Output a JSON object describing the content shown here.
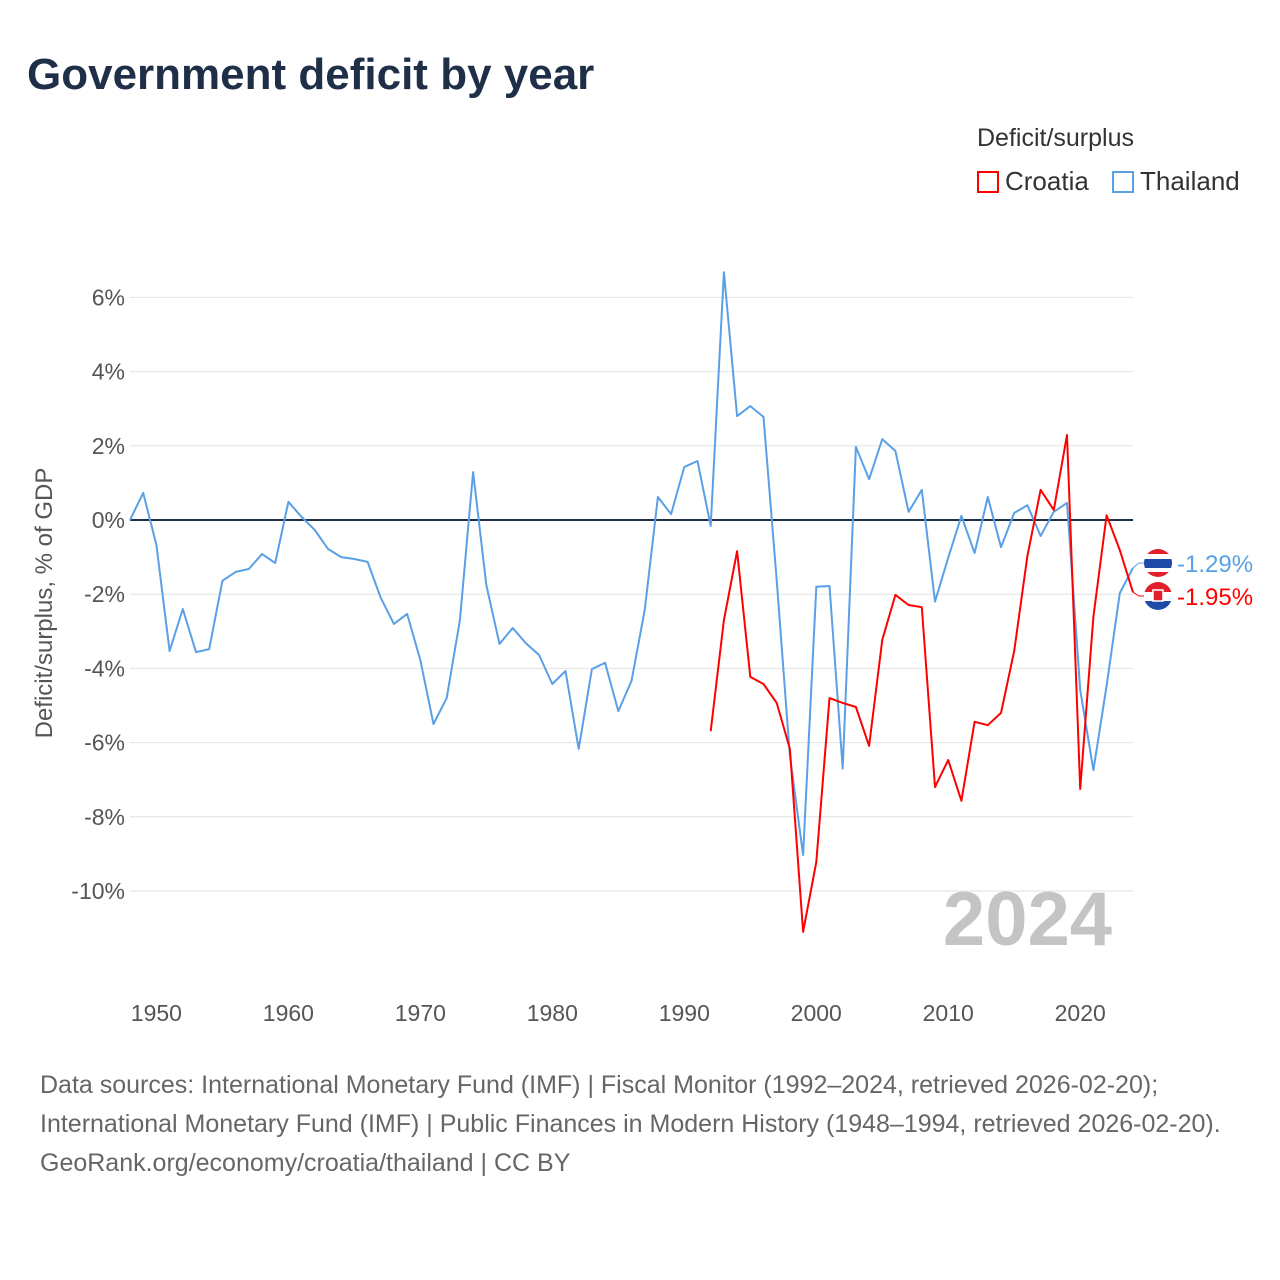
{
  "title": "Government deficit by year",
  "legend": {
    "title": "Deficit/surplus",
    "items": [
      {
        "name": "Croatia",
        "color": "#ff0000"
      },
      {
        "name": "Thailand",
        "color": "#5aa0e6"
      }
    ]
  },
  "watermark_year": "2024",
  "footer": {
    "sources": "Data sources: International Monetary Fund (IMF) | Fiscal Monitor (1992–2024, retrieved 2026-02-20); International Monetary Fund (IMF) | Public Finances in Modern History (1948–1994, retrieved 2026-02-20).",
    "link": "GeoRank.org/economy/croatia/thailand | CC BY"
  },
  "chart_data": {
    "type": "line",
    "title": "Government deficit by year",
    "xlabel": "",
    "ylabel": "Deficit/surplus, % of GDP",
    "xlim": [
      1948,
      2024
    ],
    "ylim": [
      -12,
      7
    ],
    "x_ticks": [
      1950,
      1960,
      1970,
      1980,
      1990,
      2000,
      2010,
      2020
    ],
    "y_ticks": [
      6,
      4,
      2,
      0,
      -2,
      -4,
      -6,
      -8,
      -10
    ],
    "y_tick_labels": [
      "6%",
      "4%",
      "2%",
      "0%",
      "-2%",
      "-4%",
      "-6%",
      "-8%",
      "-10%"
    ],
    "grid": true,
    "legend_position": "top-right",
    "series": [
      {
        "name": "Thailand",
        "color": "#5aa0e6",
        "start_year": 1948,
        "end_label": "-1.29%",
        "values": [
          0.0,
          0.73,
          -0.67,
          -3.53,
          -2.4,
          -3.56,
          -3.48,
          -1.64,
          -1.4,
          -1.32,
          -0.92,
          -1.16,
          0.49,
          0.08,
          -0.27,
          -0.78,
          -1.0,
          -1.05,
          -1.13,
          -2.1,
          -2.8,
          -2.53,
          -3.77,
          -5.5,
          -4.8,
          -2.7,
          1.29,
          -1.75,
          -3.34,
          -2.91,
          -3.32,
          -3.64,
          -4.42,
          -4.07,
          -6.17,
          -4.02,
          -3.85,
          -5.15,
          -4.34,
          -2.43,
          0.62,
          0.16,
          1.43,
          1.59,
          -0.16,
          6.68,
          2.8,
          3.07,
          2.78,
          -1.62,
          -6.36,
          -9.03,
          -1.8,
          -1.78,
          -6.7,
          1.97,
          1.1,
          2.18,
          1.86,
          0.22,
          0.81,
          -2.2,
          -1.02,
          0.11,
          -0.89,
          0.62,
          -0.73,
          0.19,
          0.4,
          -0.43,
          0.22,
          0.46,
          -4.58,
          -6.74,
          -4.47,
          -1.97,
          -1.29
        ]
      },
      {
        "name": "Croatia",
        "color": "#ff0000",
        "start_year": 1992,
        "end_label": "-1.95%",
        "values": [
          -5.69,
          -2.7,
          -0.84,
          -4.23,
          -4.42,
          -4.93,
          -6.17,
          -11.1,
          -9.22,
          -4.8,
          -4.93,
          -5.04,
          -6.09,
          -3.23,
          -2.02,
          -2.29,
          -2.35,
          -7.2,
          -6.47,
          -7.57,
          -5.44,
          -5.53,
          -5.2,
          -3.53,
          -0.97,
          0.81,
          0.27,
          2.29,
          -7.25,
          -2.61,
          0.13,
          -0.81,
          -1.95
        ]
      }
    ]
  }
}
